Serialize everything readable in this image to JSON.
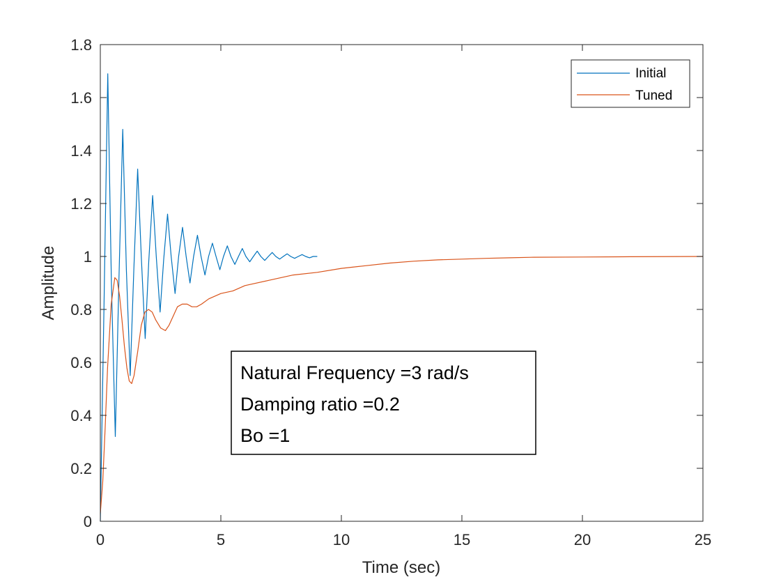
{
  "chart_data": {
    "type": "line",
    "xlabel": "Time (sec)",
    "ylabel": "Amplitude",
    "xlim": [
      0,
      25
    ],
    "ylim": [
      0,
      1.8
    ],
    "xticks": [
      0,
      5,
      10,
      15,
      20,
      25
    ],
    "yticks": [
      0,
      0.2,
      0.4,
      0.6,
      0.8,
      1,
      1.2,
      1.4,
      1.6,
      1.8
    ],
    "xtick_labels": [
      "0",
      "5",
      "10",
      "15",
      "20",
      "25"
    ],
    "ytick_labels": [
      "0",
      "0.2",
      "0.4",
      "0.6",
      "0.8",
      "1",
      "1.2",
      "1.4",
      "1.6",
      "1.8"
    ],
    "grid": false,
    "legend_position": "top-right",
    "series": [
      {
        "name": "Initial",
        "color": "#0072BD",
        "x": [
          0,
          0.15,
          0.31,
          0.46,
          0.62,
          0.77,
          0.93,
          1.08,
          1.24,
          1.39,
          1.55,
          1.7,
          1.86,
          2.01,
          2.17,
          2.32,
          2.48,
          2.63,
          2.79,
          2.94,
          3.1,
          3.25,
          3.41,
          3.56,
          3.72,
          3.87,
          4.03,
          4.18,
          4.34,
          4.49,
          4.65,
          4.8,
          4.96,
          5.11,
          5.27,
          5.42,
          5.58,
          5.73,
          5.89,
          6.04,
          6.2,
          6.35,
          6.51,
          6.66,
          6.82,
          6.97,
          7.13,
          7.28,
          7.44,
          7.59,
          7.75,
          7.9,
          8.06,
          8.21,
          8.37,
          8.52,
          8.68,
          8.83,
          9.0
        ],
        "y": [
          0,
          0.8,
          1.69,
          0.9,
          0.32,
          0.9,
          1.48,
          0.95,
          0.55,
          0.95,
          1.33,
          1.0,
          0.69,
          0.98,
          1.23,
          1.0,
          0.79,
          0.99,
          1.16,
          1.0,
          0.86,
          1.0,
          1.11,
          1.0,
          0.9,
          1.0,
          1.08,
          1.0,
          0.93,
          1.0,
          1.05,
          1.0,
          0.95,
          1.0,
          1.04,
          1.0,
          0.97,
          1.0,
          1.03,
          1.0,
          0.98,
          1.0,
          1.02,
          1.0,
          0.985,
          1.0,
          1.015,
          1.0,
          0.99,
          1.0,
          1.01,
          1.0,
          0.993,
          1.0,
          1.007,
          1.0,
          0.995,
          1.0,
          1.0
        ]
      },
      {
        "name": "Tuned",
        "color": "#D95319",
        "x": [
          0,
          0.1,
          0.2,
          0.3,
          0.45,
          0.6,
          0.7,
          0.8,
          0.9,
          1.0,
          1.1,
          1.2,
          1.3,
          1.4,
          1.55,
          1.7,
          1.85,
          2.0,
          2.15,
          2.3,
          2.5,
          2.7,
          2.85,
          3.0,
          3.2,
          3.4,
          3.6,
          3.8,
          4.0,
          4.2,
          4.5,
          5.0,
          5.5,
          6.0,
          7.0,
          8.0,
          9.0,
          10.0,
          11.0,
          12.0,
          13.0,
          14.0,
          15.0,
          16.0,
          17.0,
          18.0,
          20.0,
          22.0,
          25.0
        ],
        "y": [
          0.03,
          0.15,
          0.35,
          0.58,
          0.82,
          0.92,
          0.91,
          0.85,
          0.76,
          0.66,
          0.58,
          0.53,
          0.52,
          0.55,
          0.64,
          0.74,
          0.79,
          0.8,
          0.79,
          0.76,
          0.73,
          0.72,
          0.74,
          0.77,
          0.81,
          0.82,
          0.82,
          0.81,
          0.81,
          0.82,
          0.84,
          0.86,
          0.87,
          0.89,
          0.91,
          0.93,
          0.94,
          0.955,
          0.965,
          0.975,
          0.982,
          0.987,
          0.99,
          0.993,
          0.995,
          0.997,
          0.998,
          0.999,
          1.0
        ]
      }
    ],
    "annotation": {
      "lines": [
        "Natural Frequency =3 rad/s",
        "Damping ratio =0.2",
        "Bo =1"
      ]
    }
  }
}
